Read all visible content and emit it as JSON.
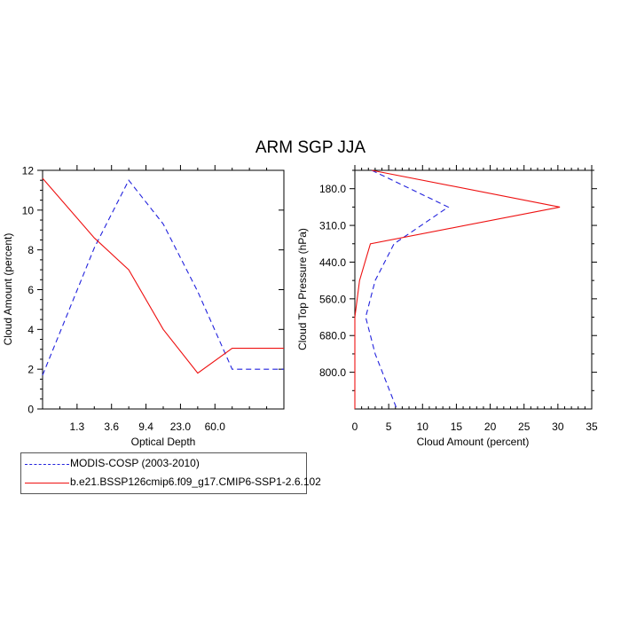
{
  "title": "ARM SGP JJA",
  "colors": {
    "modis": "#2222dd",
    "model": "#ee1111"
  },
  "legend": {
    "items": [
      {
        "label": "MODIS-COSP (2003-2010)",
        "color": "#2222dd",
        "style": "dashed"
      },
      {
        "label": "b.e21.BSSP126cmip6.f09_g17.CMIP6-SSP1-2.6.102",
        "color": "#ee1111",
        "style": "solid"
      }
    ]
  },
  "chart_data": [
    {
      "type": "line",
      "xlabel": "Optical Depth",
      "ylabel": "Cloud Amount (percent)",
      "xlim": [
        0,
        7
      ],
      "ylim": [
        0,
        12
      ],
      "x_tick_labels": [
        "1.3",
        "3.6",
        "9.4",
        "23.0",
        "60.0"
      ],
      "x_tick_positions": [
        1,
        2,
        3,
        4,
        5
      ],
      "y_ticks": [
        0,
        2,
        4,
        6,
        8,
        10,
        12
      ],
      "series": [
        {
          "name": "MODIS-COSP (2003-2010)",
          "color": "#2222dd",
          "style": "dashed",
          "x": [
            0,
            1.5,
            2.5,
            3.5,
            4.5,
            5.5,
            7
          ],
          "values": [
            1.7,
            8.1,
            11.5,
            9.3,
            5.9,
            2.0,
            2.0
          ]
        },
        {
          "name": "b.e21.BSSP126cmip6.f09_g17.CMIP6-SSP1-2.6.102",
          "color": "#ee1111",
          "style": "solid",
          "x": [
            0,
            1.5,
            2.5,
            3.5,
            4.5,
            5.5,
            7
          ],
          "values": [
            11.6,
            8.6,
            7.0,
            4.0,
            1.8,
            3.05,
            3.05
          ]
        }
      ]
    },
    {
      "type": "line",
      "orientation": "vertical-profile",
      "xlabel": "Cloud Amount (percent)",
      "ylabel": "Cloud Top Pressure (hPa)",
      "xlim": [
        0,
        35
      ],
      "x_ticks": [
        0,
        5,
        10,
        15,
        20,
        25,
        30,
        35
      ],
      "y_tick_labels": [
        "180.0",
        "310.0",
        "440.0",
        "560.0",
        "680.0",
        "800.0"
      ],
      "y_tick_positions": [
        1,
        2,
        3,
        4,
        5,
        6
      ],
      "ylim_index": [
        0.5,
        7
      ],
      "series": [
        {
          "name": "MODIS-COSP (2003-2010)",
          "color": "#2222dd",
          "style": "dashed",
          "level_index": [
            0.5,
            1.5,
            2.5,
            3.5,
            4.5,
            5.5,
            7
          ],
          "values": [
            2.5,
            13.8,
            5.8,
            3.0,
            1.6,
            3.0,
            6.2
          ]
        },
        {
          "name": "b.e21.BSSP126cmip6.f09_g17.CMIP6-SSP1-2.6.102",
          "color": "#ee1111",
          "style": "solid",
          "level_index": [
            0.5,
            1.5,
            2.5,
            3.5,
            4.5,
            5.5,
            7
          ],
          "values": [
            2.5,
            30.3,
            2.3,
            0.7,
            0.0,
            0.0,
            0.0
          ]
        }
      ]
    }
  ]
}
